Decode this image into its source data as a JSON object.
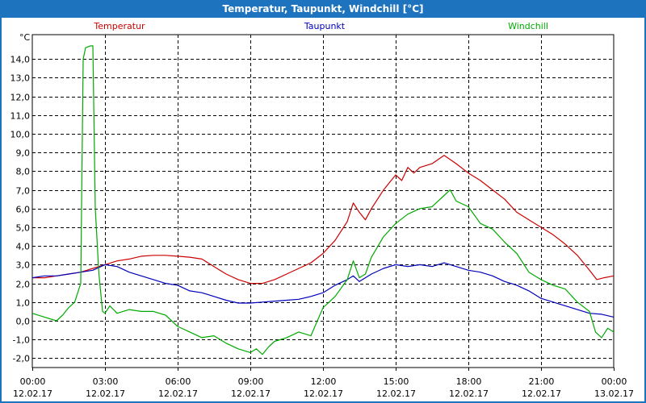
{
  "window": {
    "title": "Temperatur, Taupunkt, Windchill [°C]"
  },
  "chart_data": {
    "type": "line",
    "title": "Temperatur, Taupunkt, Windchill [°C]",
    "ylabel": "°C",
    "xlabel": "",
    "ylim": [
      -2.5,
      15.3
    ],
    "xlim": [
      0,
      24
    ],
    "grid": true,
    "y_ticks": [
      "-2,0",
      "-1,0",
      "0,0",
      "1,0",
      "2,0",
      "3,0",
      "4,0",
      "5,0",
      "6,0",
      "7,0",
      "8,0",
      "9,0",
      "10,0",
      "11,0",
      "12,0",
      "13,0",
      "14,0"
    ],
    "y_tick_values": [
      -2,
      -1,
      0,
      1,
      2,
      3,
      4,
      5,
      6,
      7,
      8,
      9,
      10,
      11,
      12,
      13,
      14
    ],
    "x_ticks": [
      {
        "value": 0,
        "time": "00:00",
        "date": "12.02.17"
      },
      {
        "value": 3,
        "time": "03:00",
        "date": "12.02.17"
      },
      {
        "value": 6,
        "time": "06:00",
        "date": "12.02.17"
      },
      {
        "value": 9,
        "time": "09:00",
        "date": "12.02.17"
      },
      {
        "value": 12,
        "time": "12:00",
        "date": "12.02.17"
      },
      {
        "value": 15,
        "time": "15:00",
        "date": "12.02.17"
      },
      {
        "value": 18,
        "time": "18:00",
        "date": "12.02.17"
      },
      {
        "value": 21,
        "time": "21:00",
        "date": "12.02.17"
      },
      {
        "value": 24,
        "time": "00:00",
        "date": "13.02.17"
      }
    ],
    "series": [
      {
        "name": "Temperatur",
        "color": "#cc0000",
        "x": [
          0,
          0.5,
          1,
          1.5,
          2,
          2.5,
          3,
          3.5,
          4,
          4.5,
          5,
          5.5,
          6,
          6.5,
          7,
          7.5,
          8,
          8.5,
          9,
          9.5,
          10,
          10.5,
          11,
          11.5,
          12,
          12.5,
          13,
          13.25,
          13.5,
          13.75,
          14,
          14.5,
          15,
          15.25,
          15.5,
          15.75,
          16,
          16.5,
          17,
          17.5,
          18,
          18.5,
          19,
          19.5,
          20,
          20.5,
          21,
          21.5,
          22,
          22.5,
          23,
          23.3,
          23.6,
          24
        ],
        "values": [
          2.3,
          2.3,
          2.4,
          2.5,
          2.6,
          2.8,
          3.0,
          3.2,
          3.3,
          3.45,
          3.5,
          3.5,
          3.45,
          3.4,
          3.3,
          2.9,
          2.5,
          2.2,
          2.0,
          2.0,
          2.2,
          2.5,
          2.8,
          3.1,
          3.6,
          4.3,
          5.3,
          6.3,
          5.8,
          5.4,
          6.0,
          7.0,
          7.8,
          7.5,
          8.2,
          7.9,
          8.2,
          8.4,
          8.85,
          8.4,
          7.9,
          7.5,
          7.0,
          6.5,
          5.8,
          5.4,
          5.0,
          4.6,
          4.1,
          3.5,
          2.7,
          2.2,
          2.3,
          2.4
        ]
      },
      {
        "name": "Taupunkt",
        "color": "#0000bb",
        "x": [
          0,
          0.5,
          1,
          1.5,
          2,
          2.5,
          3,
          3.5,
          4,
          4.5,
          5,
          5.5,
          6,
          6.5,
          7,
          7.5,
          8,
          8.5,
          9,
          9.5,
          10,
          10.5,
          11,
          11.5,
          12,
          12.5,
          13,
          13.25,
          13.5,
          13.75,
          14,
          14.5,
          15,
          15.5,
          16,
          16.5,
          17,
          17.5,
          18,
          18.5,
          19,
          19.5,
          20,
          20.5,
          21,
          21.5,
          22,
          22.5,
          23,
          23.5,
          24
        ],
        "values": [
          2.3,
          2.4,
          2.4,
          2.5,
          2.6,
          2.7,
          3.0,
          2.9,
          2.6,
          2.4,
          2.2,
          2.0,
          1.9,
          1.6,
          1.5,
          1.3,
          1.1,
          0.95,
          0.95,
          1.0,
          1.05,
          1.1,
          1.15,
          1.3,
          1.5,
          1.9,
          2.2,
          2.4,
          2.1,
          2.3,
          2.5,
          2.8,
          3.0,
          2.9,
          3.0,
          2.9,
          3.1,
          2.9,
          2.7,
          2.6,
          2.4,
          2.1,
          1.9,
          1.6,
          1.2,
          1.0,
          0.8,
          0.6,
          0.4,
          0.35,
          0.2
        ]
      },
      {
        "name": "Windchill",
        "color": "#00aa00",
        "x": [
          0,
          0.5,
          1,
          1.25,
          1.5,
          1.75,
          2,
          2.1,
          2.2,
          2.4,
          2.5,
          2.6,
          2.75,
          2.9,
          3.0,
          3.2,
          3.5,
          4,
          4.5,
          5,
          5.5,
          5.75,
          6,
          6.5,
          7,
          7.5,
          8,
          8.5,
          9,
          9.25,
          9.5,
          9.75,
          10,
          10.5,
          11,
          11.5,
          12,
          12.5,
          13,
          13.25,
          13.5,
          13.75,
          14,
          14.5,
          15,
          15.5,
          16,
          16.5,
          17,
          17.25,
          17.5,
          18,
          18.5,
          19,
          19.5,
          20,
          20.5,
          21,
          21.5,
          22,
          22.5,
          23,
          23.25,
          23.5,
          23.75,
          24
        ],
        "values": [
          0.4,
          0.2,
          0.0,
          0.3,
          0.7,
          1.0,
          2.0,
          14.0,
          14.6,
          14.7,
          14.7,
          6.0,
          2.5,
          0.5,
          0.4,
          0.8,
          0.4,
          0.6,
          0.5,
          0.5,
          0.3,
          0.0,
          -0.3,
          -0.6,
          -0.9,
          -0.8,
          -1.2,
          -1.5,
          -1.7,
          -1.5,
          -1.8,
          -1.4,
          -1.1,
          -0.9,
          -0.6,
          -0.8,
          0.7,
          1.3,
          2.2,
          3.2,
          2.3,
          2.5,
          3.4,
          4.5,
          5.2,
          5.7,
          6.0,
          6.1,
          6.7,
          7.0,
          6.4,
          6.1,
          5.2,
          4.9,
          4.2,
          3.6,
          2.6,
          2.2,
          1.9,
          1.7,
          1.0,
          0.5,
          -0.6,
          -0.9,
          -0.4,
          -0.6
        ]
      }
    ]
  }
}
